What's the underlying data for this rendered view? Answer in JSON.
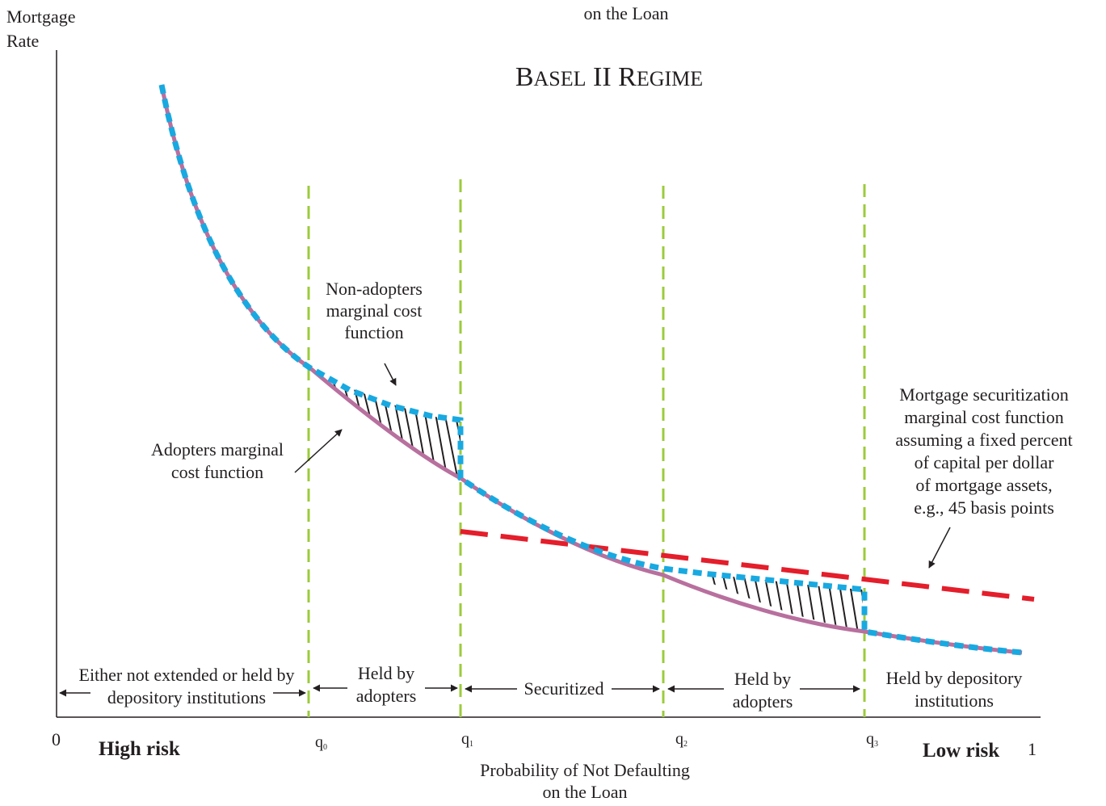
{
  "top_caption": [
    "on the Loan"
  ],
  "title": {
    "first": "B",
    "first_rest": "ASEL",
    "mid": " II ",
    "second": "R",
    "second_rest": "EGIME"
  },
  "y_axis_label": [
    "Mortgage",
    "Rate"
  ],
  "x_axis": {
    "origin": "0",
    "end": "1",
    "left_label": "High risk",
    "right_label": "Low risk",
    "title": [
      "Probability of Not Defaulting",
      "on the Loan"
    ]
  },
  "thresholds": [
    {
      "id": "q0",
      "base": "q",
      "sub": "0"
    },
    {
      "id": "q1",
      "base": "q",
      "sub": "1"
    },
    {
      "id": "q2",
      "base": "q",
      "sub": "2"
    },
    {
      "id": "q3",
      "base": "q",
      "sub": "3"
    }
  ],
  "regions": [
    {
      "id": "region-0",
      "lines": [
        "Either not extended or held by",
        "depository institutions"
      ]
    },
    {
      "id": "region-1",
      "lines": [
        "Held by",
        "adopters"
      ]
    },
    {
      "id": "region-2",
      "lines": [
        "Securitized"
      ]
    },
    {
      "id": "region-3",
      "lines": [
        "Held by",
        "adopters"
      ]
    },
    {
      "id": "region-4",
      "lines": [
        "Held by depository",
        "institutions"
      ]
    }
  ],
  "annotations": {
    "non_adopters": [
      "Non-adopters",
      "marginal cost",
      "function"
    ],
    "adopters": [
      "Adopters marginal",
      "cost function"
    ],
    "securitization": [
      "Mortgage securitization",
      "marginal cost function",
      "assuming a fixed percent",
      "of capital per dollar",
      "of mortgage assets,",
      "e.g., 45 basis points"
    ]
  },
  "colors": {
    "adopters_curve": "#b8709e",
    "non_adopters_curve": "#18a9e1",
    "securitization_line": "#e41e2b",
    "threshold_lines": "#9ccb3c",
    "axis": "#231f20"
  }
}
